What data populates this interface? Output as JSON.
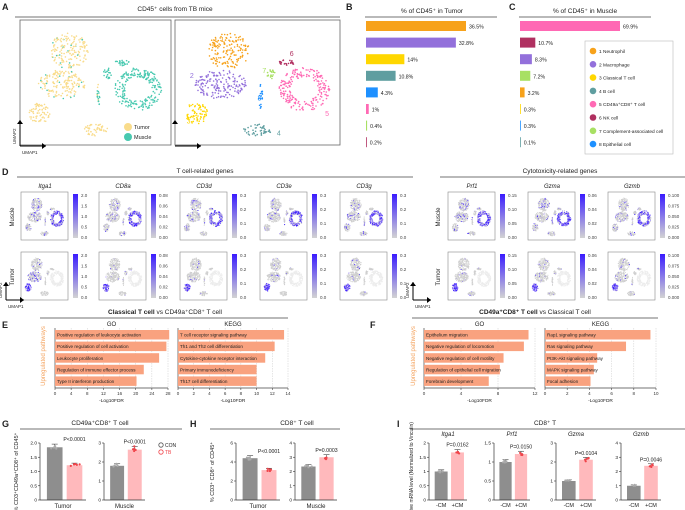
{
  "colors": {
    "neutrophil": "#F7A21B",
    "macrophage": "#9370DB",
    "classical_t": "#FFD700",
    "b_cell": "#5F9EA0",
    "cd49a_cd8_t": "#FF69B4",
    "nk": "#B03060",
    "complement": "#A8E063",
    "epithelial": "#1E90FF",
    "tumor": "#F9DC8C",
    "muscle": "#48C9B0",
    "con_bar": "#8E8E8E",
    "tb_bar": "#FFB9BC",
    "tb_dot": "#F0444A",
    "enrichment_bar": "#F9A27F",
    "upregulated_label": "#F4A460",
    "expr_high": "#3A1CFF",
    "expr_low": "#D3D3D3"
  },
  "chart_data": [
    {
      "panel": "A",
      "type": "scatter",
      "title": "CD45⁺ cells from TB mice",
      "xlabel": "UMAP1",
      "ylabel": "UMAP2",
      "legend": [
        "Tumor",
        "Muscle"
      ],
      "legend_placement": "bottom-right",
      "cluster_labels": [
        "1",
        "2",
        "3",
        "4",
        "5",
        "6",
        "7",
        "8"
      ]
    },
    {
      "panel": "B",
      "type": "bar",
      "title": "% of CD45⁺ in Tumor",
      "categories": [
        "1 Neutrophil",
        "2 Macrophage",
        "3 Classical T cell",
        "4 B cell",
        "8 Epithelial cell",
        "5 CD49a⁺CD8⁺ T cell",
        "7 Complement-associated cell",
        "6 NK cell"
      ],
      "values": [
        36.5,
        32.8,
        14,
        10.8,
        4.3,
        1,
        0.4,
        0.2
      ],
      "labels": [
        "36.5%",
        "32.8%",
        "14%",
        "10.8%",
        "4.3%",
        "1%",
        "0.4%",
        "0.2%"
      ],
      "color_keys": [
        "neutrophil",
        "macrophage",
        "classical_t",
        "b_cell",
        "epithelial",
        "cd49a_cd8_t",
        "complement",
        "nk"
      ]
    },
    {
      "panel": "C",
      "type": "bar",
      "title": "% of CD45⁺ in Muscle",
      "categories": [
        "5 CD49a⁺CD8⁺ T cell",
        "6 NK cell",
        "2 Macrophage",
        "7 Complement-associated cell",
        "1 Neutrophil",
        "3 Classical T cell",
        "8 Epithelial cell",
        "4 B cell"
      ],
      "values": [
        69.9,
        10.7,
        8.3,
        7.2,
        3.2,
        0.3,
        0.3,
        0.1
      ],
      "labels": [
        "69.9%",
        "10.7%",
        "8.3%",
        "7.2%",
        "3.2%",
        "0.3%",
        "0.3%",
        "0.1%"
      ],
      "color_keys": [
        "cd49a_cd8_t",
        "nk",
        "macrophage",
        "complement",
        "neutrophil",
        "classical_t",
        "epithelial",
        "b_cell"
      ],
      "legend": [
        {
          "label": "1 Neutrophil",
          "color_key": "neutrophil"
        },
        {
          "label": "2 Macrophage",
          "color_key": "macrophage"
        },
        {
          "label": "3 Classical T cell",
          "color_key": "classical_t"
        },
        {
          "label": "4 B cell",
          "color_key": "b_cell"
        },
        {
          "label": "5 CD49a⁺CD8⁺ T cell",
          "color_key": "cd49a_cd8_t"
        },
        {
          "label": "6 NK cell",
          "color_key": "nk"
        },
        {
          "label": "7 Complement-associated cell",
          "color_key": "complement"
        },
        {
          "label": "8 Epithelial cell",
          "color_key": "epithelial"
        }
      ],
      "legend_placement": "right"
    },
    {
      "panel": "D",
      "type": "scatter",
      "group_titles": [
        "T cell-related genes",
        "Cytotoxicity-related genes"
      ],
      "rows": [
        "Muscle",
        "Tumor"
      ],
      "xlabel": "UMAP1",
      "ylabel": "UMAP2",
      "genes": [
        {
          "name": "Itga1",
          "ticks": [
            "2.0",
            "1.5",
            "1.0",
            "0.5",
            "0.0"
          ]
        },
        {
          "name": "CD8a",
          "ticks": [
            "0.08",
            "0.06",
            "0.04",
            "0.02",
            "0.00"
          ]
        },
        {
          "name": "CD3d",
          "ticks": [
            "0.3",
            "0.2",
            "0.1",
            "0.0"
          ]
        },
        {
          "name": "CD3e",
          "ticks": [
            "0.3",
            "0.2",
            "0.1",
            "0.0"
          ]
        },
        {
          "name": "CD3g",
          "ticks": [
            "0.3",
            "0.2",
            "0.1",
            "0.0"
          ]
        },
        {
          "name": "Prf1",
          "ticks": [
            "0.15",
            "0.10",
            "0.05",
            "0.00"
          ]
        },
        {
          "name": "Gzma",
          "ticks": [
            "0.06",
            "0.04",
            "0.02",
            "0.00"
          ]
        },
        {
          "name": "Gzmb",
          "ticks": [
            "0.100",
            "0.075",
            "0.050",
            "0.025",
            "0.000"
          ]
        }
      ]
    },
    {
      "panel": "E",
      "type": "bar",
      "title_bold": "Classical T cell",
      "title_rest": " vs CD49a⁺CD8⁺ T cell",
      "ylabel": "Upregulated pathways",
      "xlabel": "-Log10FDR",
      "subplots": [
        {
          "title": "GO",
          "xlim": [
            0,
            28
          ],
          "ticks": [
            0,
            4,
            8,
            12,
            16,
            20,
            24,
            28
          ],
          "categories": [
            "Positive regulation of leukocyte activation",
            "Positive regulation of cell activation",
            "Leukocyte proliferation",
            "Regulation of immune effector process",
            "Type II interferon production"
          ],
          "values": [
            28.3,
            27.6,
            25.8,
            22.0,
            20.2
          ]
        },
        {
          "title": "KEGG",
          "xlim": [
            0,
            14
          ],
          "ticks": [
            0,
            2,
            4,
            6,
            8,
            10,
            12,
            14
          ],
          "categories": [
            "T cell receptor signaling pathway",
            "Th1 and Th2 cell differentiation",
            "Cytokine-cytokine receptor interaction",
            "Primary immunodeficiency",
            "Th17 cell differentiation"
          ],
          "values": [
            13.5,
            12.3,
            11.1,
            10.0,
            10.0
          ]
        }
      ]
    },
    {
      "panel": "F",
      "type": "bar",
      "title_bold": "CD49a⁺CD8⁺ T cell",
      "title_rest": " vs Classical T cell",
      "ylabel": "Upregulated pathways",
      "xlabel": "-Log10FDR",
      "subplots": [
        {
          "title": "GO",
          "xlim": [
            0,
            12
          ],
          "ticks": [
            0,
            4,
            8,
            12
          ],
          "categories": [
            "Epithelium migration",
            "Negative regulation of locomotion",
            "Negative regulation of cell motility",
            "Regulation of epithelial cell migration",
            "Forebrain development"
          ],
          "values": [
            11.3,
            10.8,
            8.6,
            8.2,
            7.0
          ]
        },
        {
          "title": "KEGG",
          "xlim": [
            0,
            10
          ],
          "ticks": [
            0,
            2,
            4,
            6,
            8,
            10
          ],
          "categories": [
            "Rap1 signaling pathway",
            "Ras signaling pathway",
            "PI3K-Akt signaling pathway",
            "MAPK signaling pathway",
            "Focal adhesion"
          ],
          "values": [
            9.5,
            7.3,
            4.7,
            4.4,
            4.1
          ]
        }
      ]
    },
    {
      "panel": "G",
      "type": "bar",
      "title": "CD49a⁺CD8⁺ T cell",
      "ylabel": "% CD3⁺CD49a⁺CD8⁺ of CD45⁺",
      "legend": [
        "CON",
        "TB"
      ],
      "legend_placement": "right",
      "subplots": [
        {
          "xlabel": "Tumor",
          "series": [
            "CON",
            "TB"
          ],
          "values": [
            1.85,
            1.22
          ],
          "ylim": [
            0,
            2
          ],
          "ticks": [
            "0",
            "0.5",
            "1.0",
            "1.5",
            "2.0"
          ],
          "p": "P<0.0001"
        },
        {
          "xlabel": "Muscle",
          "series": [
            "CON",
            "TB"
          ],
          "values": [
            1.8,
            2.65
          ],
          "ylim": [
            0,
            3
          ],
          "ticks": [
            "0",
            "1",
            "2",
            "3"
          ],
          "p": "P<0.0001"
        }
      ]
    },
    {
      "panel": "H",
      "type": "bar",
      "title": "CD8⁺ T cell",
      "ylabel": "% CD3⁺ CD8⁺ of CD45⁺",
      "subplots": [
        {
          "xlabel": "Tumor",
          "series": [
            "CON",
            "TB"
          ],
          "values": [
            4.4,
            3.15
          ],
          "ylim": [
            0,
            6
          ],
          "ticks": [
            "0",
            "2",
            "4",
            "6"
          ],
          "p": "P<0.0001"
        },
        {
          "xlabel": "Muscle",
          "series": [
            "CON",
            "TB"
          ],
          "values": [
            2.35,
            3.0
          ],
          "ylim": [
            0,
            4
          ],
          "ticks": [
            "0",
            "1",
            "2",
            "3",
            "4"
          ],
          "p": "P=0.0003"
        }
      ]
    },
    {
      "panel": "I",
      "type": "bar",
      "title": "CD8⁺ T",
      "ylabel": "Relative mRNA level (Normalized to Vinculin)",
      "subplots": [
        {
          "title": "Itga1",
          "categories": [
            "-CM",
            "+CM"
          ],
          "values": [
            1.0,
            1.67
          ],
          "ylim": [
            0,
            2
          ],
          "ticks": [
            "0",
            "0.5",
            "1",
            "1.5",
            "2"
          ],
          "p": "P=0.0162"
        },
        {
          "title": "Prf1",
          "categories": [
            "-CM",
            "+CM"
          ],
          "values": [
            1.0,
            1.21
          ],
          "ylim": [
            0,
            1.5
          ],
          "ticks": [
            "0",
            "0.5",
            "1",
            "1.5"
          ],
          "p": "P=0.0150"
        },
        {
          "title": "Gzma",
          "categories": [
            "-CM",
            "+CM"
          ],
          "values": [
            1.0,
            2.12
          ],
          "ylim": [
            0,
            3
          ],
          "ticks": [
            "0",
            "1",
            "2",
            "3"
          ],
          "p": "P=0.0104"
        },
        {
          "title": "Gzmb",
          "categories": [
            "-CM",
            "+CM"
          ],
          "values": [
            1.0,
            2.4
          ],
          "ylim": [
            0,
            4
          ],
          "ticks": [
            "0",
            "1",
            "2",
            "3",
            "4"
          ],
          "p": "P=0.0046"
        }
      ]
    }
  ],
  "panel_letters": [
    "A",
    "B",
    "C",
    "D",
    "E",
    "F",
    "G",
    "H",
    "I"
  ]
}
